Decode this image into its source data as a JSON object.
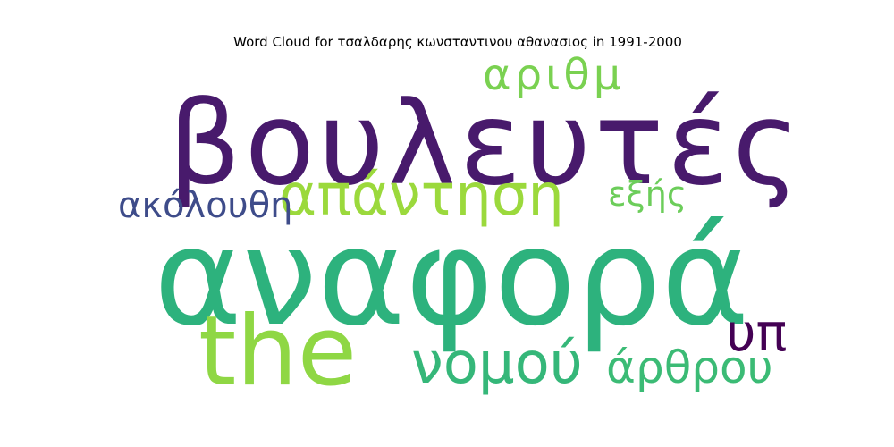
{
  "chart_data": {
    "type": "wordcloud",
    "title": "Word Cloud for τσαλδαρης κωνσταντινου αθανασιος in 1991-2000",
    "words": [
      {
        "text": "βουλευτές",
        "weight": 1.0,
        "color": "#481a6c"
      },
      {
        "text": "αναφορά",
        "weight": 1.0,
        "color": "#2db27d"
      },
      {
        "text": "the",
        "weight": 0.72,
        "color": "#8fd744"
      },
      {
        "text": "απάντηση",
        "weight": 0.44,
        "color": "#9bd93c"
      },
      {
        "text": "νομού",
        "weight": 0.44,
        "color": "#35b779"
      },
      {
        "text": "άρθρου",
        "weight": 0.38,
        "color": "#3bbb75"
      },
      {
        "text": "αριθμ",
        "weight": 0.36,
        "color": "#7ad151"
      },
      {
        "text": "υπ",
        "weight": 0.33,
        "color": "#440154"
      },
      {
        "text": "ακόλουθη",
        "weight": 0.31,
        "color": "#3e4c8a"
      },
      {
        "text": "εξής",
        "weight": 0.28,
        "color": "#6ccd5a"
      }
    ]
  }
}
